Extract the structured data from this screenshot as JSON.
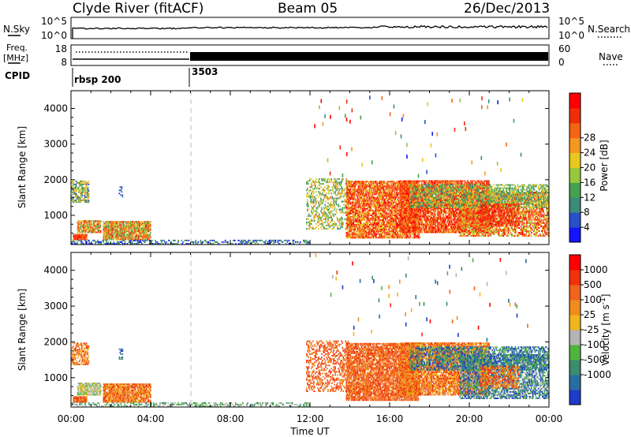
{
  "header": {
    "station": "Clyde River (fitACF)",
    "beam": "Beam 05",
    "date": "26/Dec/2013"
  },
  "sky_panel": {
    "left_label": "N.Sky",
    "left_ticks": [
      "10^5",
      "10^0"
    ],
    "right_ticks": [
      "10^5",
      "10^0"
    ],
    "right_label": "N.Search"
  },
  "freq_panel": {
    "left_label_1": "Freq.",
    "left_label_2": "[MHz]",
    "left_ticks": [
      "18",
      "8"
    ],
    "right_ticks": [
      "60",
      "0"
    ],
    "right_label": "Nave"
  },
  "cpid_panel": {
    "label": "CPID",
    "segments": [
      "rbsp 200",
      "3503"
    ]
  },
  "x_axis": {
    "label": "Time UT",
    "ticks": [
      "00:00",
      "04:00",
      "08:00",
      "12:00",
      "16:00",
      "20:00",
      "00:00"
    ]
  },
  "chart_data": [
    {
      "type": "heatmap",
      "name": "power",
      "ylabel": "Slant Range [km]",
      "y_ticks": [
        "1000",
        "2000",
        "3000",
        "4000"
      ],
      "ylim": [
        180,
        4500
      ],
      "xlim": [
        "00:00",
        "24:00"
      ],
      "colorbar": {
        "label": "Power [dB]",
        "ticks": [
          "4",
          "8",
          "12",
          "16",
          "20",
          "24",
          "28"
        ],
        "colors": [
          "#1414ff",
          "#2850c8",
          "#3c8a78",
          "#46a050",
          "#96c83c",
          "#e6c81e",
          "#f59620",
          "#f56414",
          "#f02d0a",
          "#ff0000"
        ]
      }
    },
    {
      "type": "heatmap",
      "name": "velocity",
      "ylabel": "Slant Range [km]",
      "y_ticks": [
        "1000",
        "2000",
        "3000",
        "4000"
      ],
      "ylim": [
        180,
        4500
      ],
      "xlim": [
        "00:00",
        "24:00"
      ],
      "colorbar": {
        "label": "Velocity [m s^-1]",
        "ticks": [
          "1000",
          "500",
          "100",
          "25",
          "-25",
          "-100",
          "-500",
          "-1000"
        ],
        "colors": [
          "#1e3cc8",
          "#286ea0",
          "#3c8c6e",
          "#50b43c",
          "#b4b4b4",
          "#f0b41e",
          "#f08c1e",
          "#f0641e",
          "#f0320a",
          "#ff0000"
        ]
      }
    }
  ]
}
